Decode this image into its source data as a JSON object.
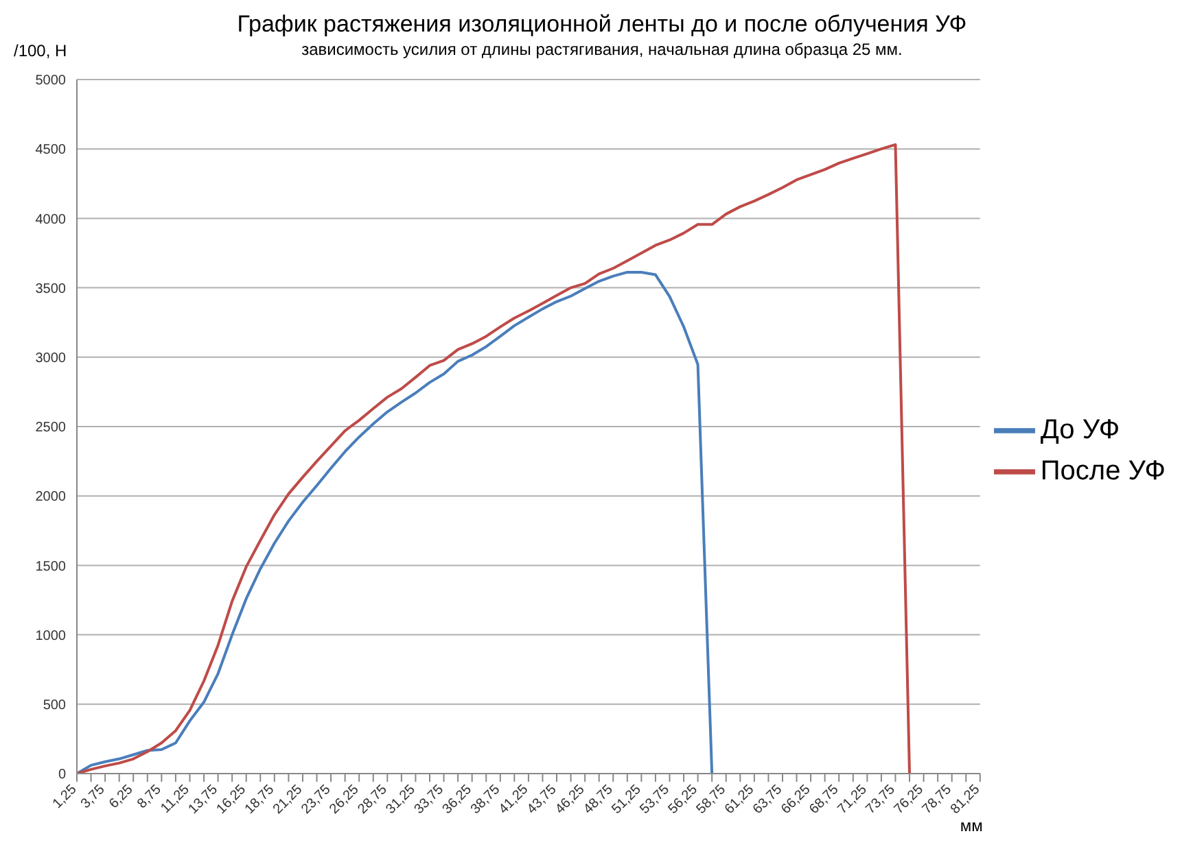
{
  "chart_data": {
    "type": "line",
    "title": "График растяжения изоляционной ленты до и после облучения УФ",
    "subtitle": "зависимость усилия от длины растягивания, начальная длина образца 25 мм.",
    "xlabel": "мм",
    "ylabel": "/100, Н",
    "categories": [
      "1,25",
      null,
      "3,75",
      null,
      "6,25",
      null,
      "8,75",
      null,
      "11,25",
      null,
      "13,75",
      null,
      "16,25",
      null,
      "18,75",
      null,
      "21,25",
      null,
      "23,75",
      null,
      "26,25",
      null,
      "28,75",
      null,
      "31,25",
      null,
      "33,75",
      null,
      "36,25",
      null,
      "38,75",
      null,
      "41,25",
      null,
      "43,75",
      null,
      "46,25",
      null,
      "48,75",
      null,
      "51,25",
      null,
      "53,75",
      null,
      "56,25",
      null,
      "58,75",
      null,
      "61,25",
      null,
      "63,75",
      null,
      "66,25",
      null,
      "68,75",
      null,
      "71,25",
      null,
      "73,75",
      null,
      "76,25",
      null,
      "78,75",
      null,
      "81,25"
    ],
    "series": [
      {
        "name": "До УФ",
        "color": "#4a7ebb",
        "values": [
          0,
          60,
          85,
          106,
          136,
          167,
          173,
          221,
          380,
          515,
          720,
          1000,
          1260,
          1475,
          1660,
          1820,
          1955,
          2075,
          2200,
          2320,
          2425,
          2520,
          2606,
          2676,
          2742,
          2818,
          2879,
          2970,
          3015,
          3076,
          3150,
          3227,
          3288,
          3348,
          3400,
          3440,
          3494,
          3547,
          3584,
          3612,
          3612,
          3594,
          3437,
          3219,
          2947,
          0,
          null,
          null,
          null,
          null,
          null,
          null,
          null,
          null,
          null,
          null,
          null,
          null,
          null,
          null,
          null,
          null,
          null,
          null,
          null
        ]
      },
      {
        "name": "После УФ",
        "color": "#be4b48",
        "values": [
          0,
          30,
          55,
          76,
          106,
          158,
          221,
          309,
          455,
          667,
          924,
          1242,
          1490,
          1680,
          1865,
          2015,
          2135,
          2250,
          2360,
          2470,
          2545,
          2630,
          2712,
          2773,
          2855,
          2940,
          2976,
          3055,
          3097,
          3150,
          3218,
          3282,
          3333,
          3388,
          3445,
          3500,
          3531,
          3600,
          3640,
          3694,
          3750,
          3806,
          3844,
          3894,
          3956,
          3956,
          4031,
          4084,
          4125,
          4172,
          4222,
          4278,
          4315,
          4352,
          4398,
          4432,
          4466,
          4500,
          4531,
          0,
          null,
          null,
          null,
          null,
          null
        ]
      }
    ],
    "ylim": [
      0,
      5000
    ],
    "yticks": [
      0,
      500,
      1000,
      1500,
      2000,
      2500,
      3000,
      3500,
      4000,
      4500,
      5000
    ],
    "grid": "y",
    "legend": "right",
    "marker": "none",
    "line_style": "solid"
  }
}
